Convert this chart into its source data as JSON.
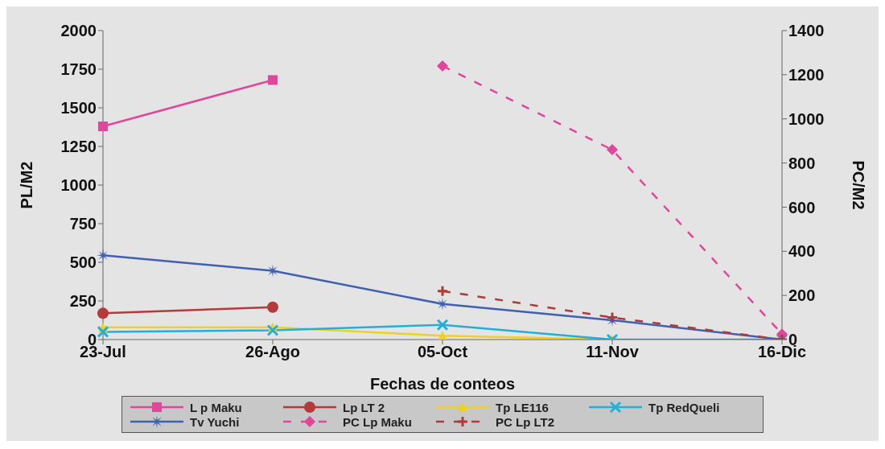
{
  "chart_data": {
    "type": "line",
    "xlabel": "Fechas de conteos",
    "ylabel": "PL/M2",
    "y2label": "PC/M2",
    "categories": [
      "23-Jul",
      "26-Ago",
      "05-Oct",
      "11-Nov",
      "16-Dic"
    ],
    "ylim": [
      0,
      2000
    ],
    "yticks": [
      0,
      250,
      500,
      750,
      1000,
      1250,
      1500,
      1750,
      2000
    ],
    "y2lim": [
      0,
      1400
    ],
    "y2ticks": [
      0,
      200,
      400,
      600,
      800,
      1000,
      1200,
      1400
    ],
    "legend": "bottom",
    "grid": false,
    "series": [
      {
        "name": "L p Maku",
        "color": "#e0479a",
        "marker": "square",
        "line_style": "solid",
        "values": [
          1380,
          1680,
          null,
          null,
          null
        ]
      },
      {
        "name": "Lp LT 2",
        "color": "#b53a3a",
        "marker": "circle",
        "line_style": "solid",
        "values": [
          170,
          210,
          null,
          null,
          null
        ]
      },
      {
        "name": "Tp LE116",
        "color": "#f0d020",
        "marker": "triangle",
        "line_style": "solid",
        "values": [
          80,
          80,
          25,
          0,
          null
        ]
      },
      {
        "name": "Tp RedQueli",
        "color": "#20b0d8",
        "marker": "cross",
        "line_style": "solid",
        "values": [
          50,
          60,
          95,
          0,
          0
        ]
      },
      {
        "name": "Tv Yuchi",
        "color": "#4060b0",
        "marker": "star",
        "line_style": "solid",
        "values": [
          545,
          445,
          230,
          125,
          0
        ]
      },
      {
        "name": "PC Lp Maku",
        "color": "#e0479a",
        "marker": "diamond",
        "line_style": "dashed",
        "axis": "y2",
        "values": [
          null,
          null,
          1240,
          860,
          25
        ]
      },
      {
        "name": "PC Lp LT2",
        "color": "#b03a3a",
        "marker": "plus",
        "line_style": "dashed",
        "axis": "y2",
        "values": [
          null,
          null,
          220,
          100,
          0
        ]
      }
    ]
  }
}
